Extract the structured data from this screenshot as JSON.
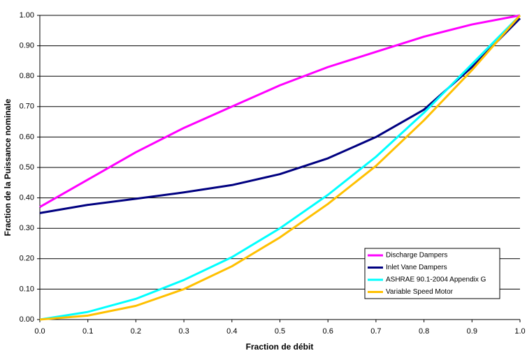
{
  "chart_data": {
    "type": "line",
    "xlabel": "Fraction de débit",
    "ylabel": "Fraction de la Puissance nominale",
    "x": [
      0,
      0.1,
      0.2,
      0.3,
      0.4,
      0.5,
      0.6,
      0.7,
      0.8,
      0.9,
      1
    ],
    "series": [
      {
        "name": "Discharge Dampers",
        "color": "#ff00ff",
        "values": [
          0.37,
          0.46,
          0.55,
          0.63,
          0.7,
          0.77,
          0.83,
          0.88,
          0.93,
          0.97,
          1.0
        ]
      },
      {
        "name": "Inlet Vane Dampers",
        "color": "#000080",
        "values": [
          0.35,
          0.377,
          0.397,
          0.418,
          0.442,
          0.478,
          0.53,
          0.6,
          0.69,
          0.83,
          0.99
        ]
      },
      {
        "name": "ASHRAE 90.1-2004 Appendix G",
        "color": "#00ffff",
        "values": [
          0,
          0.025,
          0.068,
          0.13,
          0.205,
          0.3,
          0.41,
          0.535,
          0.68,
          0.84,
          1.0
        ]
      },
      {
        "name": "Variable Speed Motor",
        "color": "#ffc000",
        "values": [
          0,
          0.013,
          0.045,
          0.1,
          0.175,
          0.27,
          0.38,
          0.505,
          0.655,
          0.82,
          1.0
        ]
      }
    ],
    "xlim": [
      0,
      1
    ],
    "ylim": [
      0,
      1
    ],
    "xticks": [
      {
        "value": 0,
        "label": "0.0"
      },
      0.1,
      0.2,
      0.3,
      0.4,
      0.5,
      0.6,
      0.7,
      0.8,
      0.9,
      {
        "value": 1,
        "label": "1.0"
      }
    ],
    "yticks": [
      {
        "value": 0,
        "label": "0.00"
      },
      {
        "value": 0.1,
        "label": "0.10"
      },
      {
        "value": 0.2,
        "label": "0.20"
      },
      {
        "value": 0.3,
        "label": "0.30"
      },
      {
        "value": 0.4,
        "label": "0.40"
      },
      {
        "value": 0.5,
        "label": "0.50"
      },
      {
        "value": 0.6,
        "label": "0.60"
      },
      {
        "value": 0.7,
        "label": "0.70"
      },
      {
        "value": 0.8,
        "label": "0.80"
      },
      {
        "value": 0.9,
        "label": "0.90"
      },
      {
        "value": 1,
        "label": "1.00"
      }
    ],
    "grid": true,
    "legend": "lower right"
  }
}
